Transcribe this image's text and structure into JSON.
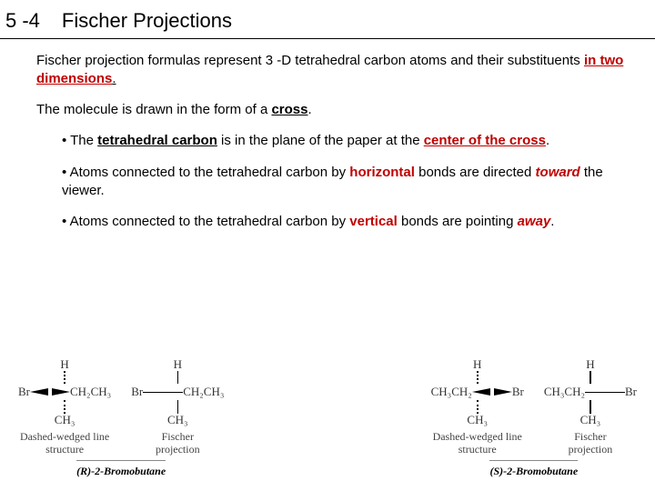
{
  "header": {
    "section": "5 -4",
    "title": "Fischer Projections"
  },
  "para1": {
    "pre": "Fischer projection formulas represent 3 -D tetrahedral carbon atoms and their substituents ",
    "redbold": "in two dimensions",
    "post": "."
  },
  "para2": {
    "pre": "The molecule is drawn in the form of a ",
    "bold": "cross",
    "post": "."
  },
  "bullet1": {
    "pre": "• The ",
    "b1": "tetrahedral carbon",
    "mid": " is in the plane of the paper at the ",
    "b2": "center of the cross",
    "post": "."
  },
  "bullet2": {
    "pre": "• Atoms connected to the tetrahedral carbon by ",
    "red1": "horizontal",
    "mid": " bonds are directed ",
    "red2": "toward",
    "post": " the viewer."
  },
  "bullet3": {
    "pre": "• Atoms connected to the tetrahedral carbon by ",
    "red1": "vertical",
    "mid": " bonds are pointing ",
    "red2": "away",
    "post": "."
  },
  "diagrams": {
    "atoms": {
      "H": "H",
      "Br": "Br",
      "CH3": "CH₃",
      "CH2CH3": "CH₂CH₃",
      "CH3CH2": "CH₃CH₂"
    },
    "captions": {
      "dw": "Dashed-wedged line",
      "structure": "structure",
      "fp": "Fischer",
      "projection": "projection",
      "r": "(R)-2-Bromobutane",
      "s": "(S)-2-Bromobutane"
    }
  }
}
